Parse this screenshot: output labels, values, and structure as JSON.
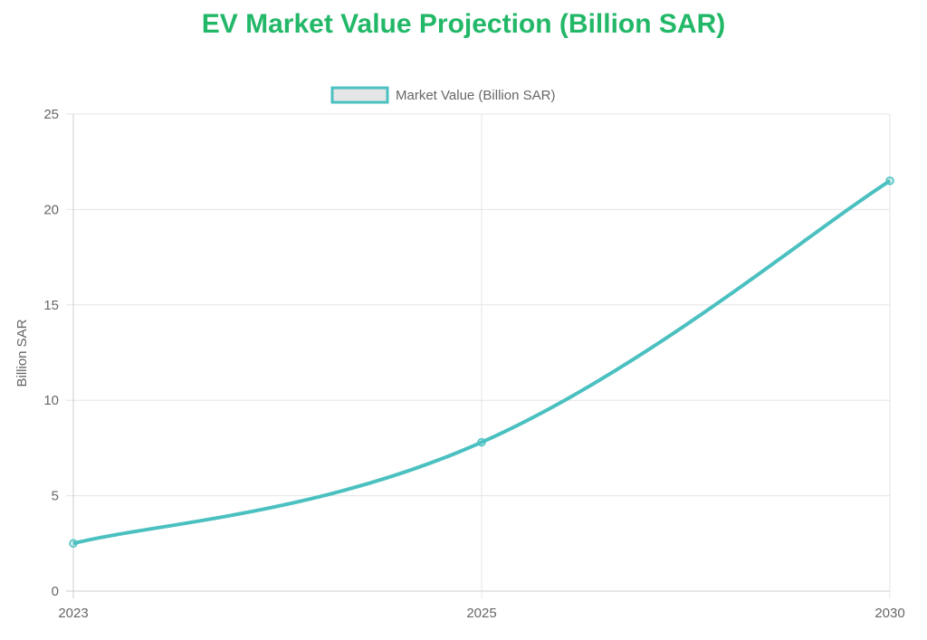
{
  "chart_data": {
    "type": "line",
    "title": "EV Market Value Projection (Billion SAR)",
    "categories": [
      "2023",
      "2025",
      "2030"
    ],
    "series": [
      {
        "name": "Market Value (Billion SAR)",
        "values": [
          2.5,
          7.8,
          21.5
        ]
      }
    ],
    "xlabel": "",
    "ylabel": "Billion SAR",
    "ylim": [
      0,
      25
    ],
    "yticks": [
      "0",
      "5",
      "10",
      "15",
      "20",
      "25"
    ],
    "grid": true,
    "legend": "top-center",
    "colors": {
      "line": "#4bc0c0",
      "legend_fill": "#e6e6e6",
      "title": "#22b868"
    }
  }
}
